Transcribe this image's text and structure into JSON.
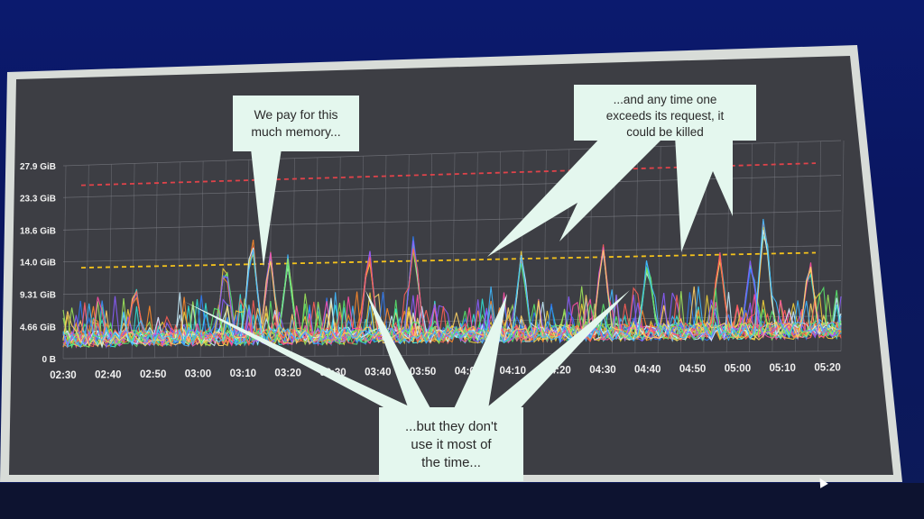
{
  "chart_data": {
    "type": "line",
    "title": "",
    "xlabel": "",
    "ylabel": "",
    "y_ticks": [
      "0 B",
      "4.66 GiB",
      "9.31 GiB",
      "14.0 GiB",
      "18.6 GiB",
      "23.3 GiB",
      "27.9 GiB"
    ],
    "ylim_gib": [
      0,
      27.9
    ],
    "x_ticks": [
      "02:30",
      "02:40",
      "02:50",
      "03:00",
      "03:10",
      "03:20",
      "03:30",
      "03:40",
      "03:50",
      "04:00",
      "04:10",
      "04:20",
      "04:30",
      "04:40",
      "04:50",
      "05:00",
      "05:10",
      "05:20"
    ],
    "xlim": [
      "02:30",
      "05:23"
    ],
    "grid": true,
    "reference_lines": [
      {
        "kind": "limit",
        "value_gib": 25.0,
        "color": "#e0434a",
        "style": "dashed"
      },
      {
        "kind": "request",
        "value_gib": 13.1,
        "color": "#f4c21c",
        "style": "dashed"
      }
    ],
    "series_count": 24,
    "series_colors": [
      "#30e3d8",
      "#f1d23a",
      "#2f7bf5",
      "#ff8a2a",
      "#9be45a",
      "#ff4fa6",
      "#c8f0ff",
      "#8a5cff",
      "#ff5e57",
      "#58e36a",
      "#ffd166",
      "#3fb8ff"
    ],
    "peaks": [
      {
        "time": "02:46",
        "gib": 11.5
      },
      {
        "time": "03:06",
        "gib": 15.2
      },
      {
        "time": "03:12",
        "gib": 18.7
      },
      {
        "time": "03:16",
        "gib": 15.9
      },
      {
        "time": "03:20",
        "gib": 14.8
      },
      {
        "time": "03:38",
        "gib": 16.2
      },
      {
        "time": "03:48",
        "gib": 17.9
      },
      {
        "time": "04:12",
        "gib": 15.0
      },
      {
        "time": "04:30",
        "gib": 16.5
      },
      {
        "time": "04:40",
        "gib": 14.1
      },
      {
        "time": "04:56",
        "gib": 14.8
      },
      {
        "time": "05:03",
        "gib": 14.0
      },
      {
        "time": "05:06",
        "gib": 20.2
      },
      {
        "time": "05:16",
        "gib": 13.2
      }
    ],
    "baseline_range_gib": [
      1.5,
      5.5
    ]
  },
  "callouts": [
    {
      "lines": [
        "We pay for this",
        "much memory..."
      ]
    },
    {
      "lines": [
        "...and any time one",
        "exceeds its request, it",
        "could be killed"
      ]
    },
    {
      "lines": [
        "...but they don't",
        "use it most of",
        "the time..."
      ]
    }
  ]
}
